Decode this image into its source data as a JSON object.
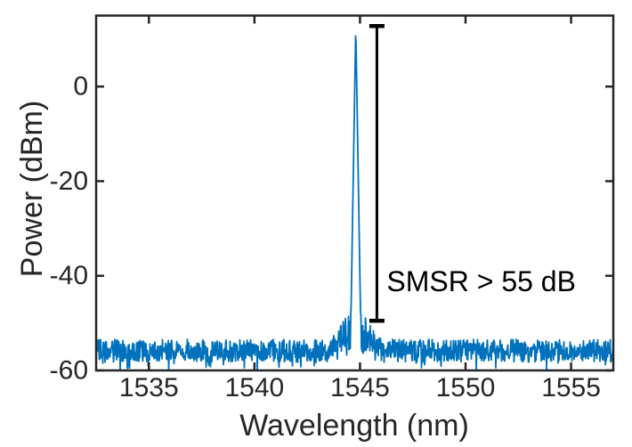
{
  "chart_data": {
    "type": "line",
    "title": "",
    "xlabel": "Wavelength (nm)",
    "ylabel": "Power (dBm)",
    "xlim": [
      1532.5,
      1557
    ],
    "ylim": [
      -60,
      15
    ],
    "xticks": [
      1535,
      1540,
      1545,
      1550,
      1555
    ],
    "yticks": [
      0,
      -20,
      -40,
      -60
    ],
    "grid": false,
    "legend": null,
    "series_name": "optical-spectrum",
    "colors": {
      "trace": "#0072BD",
      "axis": "#262626",
      "annotation": "#000000",
      "background": "#ffffff"
    },
    "peak": {
      "wavelength_nm": 1544.8,
      "power_dbm": 12.8,
      "flank_slope_db_per_nm": 270
    },
    "pedestal": {
      "base_dbm": -46,
      "slope_db_per_nm": 6,
      "extent_nm": 2.2,
      "jitter_db": 9
    },
    "noise_floor": {
      "mean_dbm": -55.8,
      "half_range_db": 2.4,
      "spike_prob": 0.15,
      "spike_depth_db": 2.6,
      "floor_clamp_dbm": -59.8,
      "seed": 20240917
    },
    "envelope_points": [
      [
        1532.5,
        -55.5
      ],
      [
        1540,
        -55.5
      ],
      [
        1544,
        -52.5
      ],
      [
        1544.7,
        -46.5
      ],
      [
        1544.8,
        12.8
      ],
      [
        1545.0,
        -46.5
      ],
      [
        1545.8,
        -50
      ],
      [
        1547,
        -53.5
      ],
      [
        1551,
        -55.5
      ],
      [
        1557,
        -55
      ]
    ],
    "annotation": {
      "text": "SMSR > 55 dB",
      "x_nm": 1545.8,
      "top_dbm": 12.8,
      "bottom_dbm": -49.5,
      "smsr_db": ">55"
    }
  }
}
